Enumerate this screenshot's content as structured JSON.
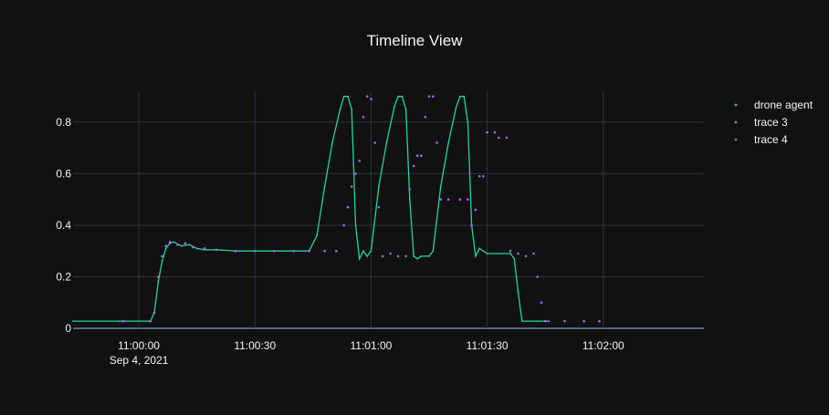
{
  "chart_data": {
    "type": "scatter",
    "title": "Timeline View",
    "xlabel": "",
    "ylabel": "",
    "x_axis": {
      "type": "date",
      "range": [
        "2021-09-04 10:59:43",
        "2021-09-04 11:02:26"
      ],
      "ticks": [
        "11:00:00",
        "11:00:30",
        "11:01:00",
        "11:01:30",
        "11:02:00"
      ],
      "tick_date_label": "Sep 4, 2021"
    },
    "y_axis": {
      "range": [
        0,
        0.92
      ],
      "ticks": [
        "0",
        "0.2",
        "0.4",
        "0.6",
        "0.8"
      ]
    },
    "grid": true,
    "legend_position": "top-right",
    "colors": {
      "background": "#111111",
      "grid": "#283442",
      "text": "#f2f5fa",
      "series_1": "#1fd69e",
      "series_2": "#ab63fa",
      "series_3": "#777777"
    },
    "series": [
      {
        "name": "drone agent",
        "mode": "lines+markers",
        "color": "#1fd69e",
        "points": [
          [
            "10:59:43",
            0.028
          ],
          [
            "10:59:55",
            0.028
          ],
          [
            "11:00:03",
            0.028
          ],
          [
            "11:00:04",
            0.06
          ],
          [
            "11:00:05",
            0.18
          ],
          [
            "11:00:06",
            0.26
          ],
          [
            "11:00:07",
            0.31
          ],
          [
            "11:00:08",
            0.33
          ],
          [
            "11:00:09",
            0.335
          ],
          [
            "11:00:11",
            0.32
          ],
          [
            "11:00:13",
            0.325
          ],
          [
            "11:00:15",
            0.31
          ],
          [
            "11:00:17",
            0.305
          ],
          [
            "11:00:20",
            0.305
          ],
          [
            "11:00:25",
            0.3
          ],
          [
            "11:00:30",
            0.3
          ],
          [
            "11:00:35",
            0.3
          ],
          [
            "11:00:40",
            0.3
          ],
          [
            "11:00:44",
            0.3
          ],
          [
            "11:00:46",
            0.36
          ],
          [
            "11:00:48",
            0.55
          ],
          [
            "11:00:50",
            0.72
          ],
          [
            "11:00:52",
            0.85
          ],
          [
            "11:00:53",
            0.9
          ],
          [
            "11:00:54",
            0.9
          ],
          [
            "11:00:55",
            0.85
          ],
          [
            "11:00:56",
            0.4
          ],
          [
            "11:00:57",
            0.27
          ],
          [
            "11:00:58",
            0.3
          ],
          [
            "11:00:59",
            0.28
          ],
          [
            "11:01:00",
            0.3
          ],
          [
            "11:01:02",
            0.55
          ],
          [
            "11:01:04",
            0.72
          ],
          [
            "11:01:06",
            0.86
          ],
          [
            "11:01:07",
            0.9
          ],
          [
            "11:01:08",
            0.9
          ],
          [
            "11:01:09",
            0.85
          ],
          [
            "11:01:10",
            0.5
          ],
          [
            "11:01:11",
            0.28
          ],
          [
            "11:01:12",
            0.27
          ],
          [
            "11:01:13",
            0.28
          ],
          [
            "11:01:15",
            0.28
          ],
          [
            "11:01:16",
            0.3
          ],
          [
            "11:01:18",
            0.55
          ],
          [
            "11:01:20",
            0.72
          ],
          [
            "11:01:22",
            0.86
          ],
          [
            "11:01:23",
            0.9
          ],
          [
            "11:01:24",
            0.9
          ],
          [
            "11:01:25",
            0.8
          ],
          [
            "11:01:26",
            0.4
          ],
          [
            "11:01:27",
            0.28
          ],
          [
            "11:01:28",
            0.31
          ],
          [
            "11:01:30",
            0.29
          ],
          [
            "11:01:33",
            0.29
          ],
          [
            "11:01:36",
            0.29
          ],
          [
            "11:01:37",
            0.27
          ],
          [
            "11:01:38",
            0.14
          ],
          [
            "11:01:39",
            0.028
          ],
          [
            "11:01:43",
            0.028
          ],
          [
            "11:01:46",
            0.028
          ]
        ]
      },
      {
        "name": "trace 3",
        "mode": "markers",
        "color": "#ab63fa",
        "points": [
          [
            "10:59:56",
            0.028
          ],
          [
            "11:00:03",
            0.028
          ],
          [
            "11:00:04",
            0.06
          ],
          [
            "11:00:05",
            0.2
          ],
          [
            "11:00:06",
            0.28
          ],
          [
            "11:00:07",
            0.32
          ],
          [
            "11:00:08",
            0.335
          ],
          [
            "11:00:10",
            0.325
          ],
          [
            "11:00:12",
            0.33
          ],
          [
            "11:00:14",
            0.315
          ],
          [
            "11:00:17",
            0.31
          ],
          [
            "11:00:20",
            0.305
          ],
          [
            "11:00:25",
            0.3
          ],
          [
            "11:00:30",
            0.3
          ],
          [
            "11:00:35",
            0.3
          ],
          [
            "11:00:40",
            0.3
          ],
          [
            "11:00:44",
            0.3
          ],
          [
            "11:00:48",
            0.3
          ],
          [
            "11:00:51",
            0.3
          ],
          [
            "11:00:53",
            0.4
          ],
          [
            "11:00:54",
            0.47
          ],
          [
            "11:00:55",
            0.55
          ],
          [
            "11:00:56",
            0.6
          ],
          [
            "11:00:57",
            0.65
          ],
          [
            "11:00:58",
            0.82
          ],
          [
            "11:00:59",
            0.9
          ],
          [
            "11:01:00",
            0.89
          ],
          [
            "11:01:01",
            0.72
          ],
          [
            "11:01:02",
            0.47
          ],
          [
            "11:01:03",
            0.28
          ],
          [
            "11:01:05",
            0.29
          ],
          [
            "11:01:07",
            0.28
          ],
          [
            "11:01:09",
            0.28
          ],
          [
            "11:01:10",
            0.54
          ],
          [
            "11:01:11",
            0.63
          ],
          [
            "11:01:12",
            0.67
          ],
          [
            "11:01:13",
            0.67
          ],
          [
            "11:01:14",
            0.82
          ],
          [
            "11:01:15",
            0.9
          ],
          [
            "11:01:16",
            0.9
          ],
          [
            "11:01:17",
            0.72
          ],
          [
            "11:01:18",
            0.5
          ],
          [
            "11:01:20",
            0.5
          ],
          [
            "11:01:23",
            0.5
          ],
          [
            "11:01:25",
            0.5
          ],
          [
            "11:01:26",
            0.4
          ],
          [
            "11:01:27",
            0.46
          ],
          [
            "11:01:28",
            0.59
          ],
          [
            "11:01:29",
            0.59
          ],
          [
            "11:01:30",
            0.76
          ],
          [
            "11:01:32",
            0.76
          ],
          [
            "11:01:33",
            0.74
          ],
          [
            "11:01:35",
            0.74
          ],
          [
            "11:01:36",
            0.3
          ],
          [
            "11:01:38",
            0.29
          ],
          [
            "11:01:40",
            0.28
          ],
          [
            "11:01:42",
            0.29
          ],
          [
            "11:01:43",
            0.2
          ],
          [
            "11:01:44",
            0.1
          ],
          [
            "11:01:45",
            0.028
          ],
          [
            "11:01:50",
            0.028
          ],
          [
            "11:01:55",
            0.028
          ],
          [
            "11:01:59",
            0.028
          ]
        ]
      },
      {
        "name": "trace 4",
        "mode": "markers",
        "color": "#777777",
        "legend_only": true,
        "points": []
      }
    ]
  }
}
